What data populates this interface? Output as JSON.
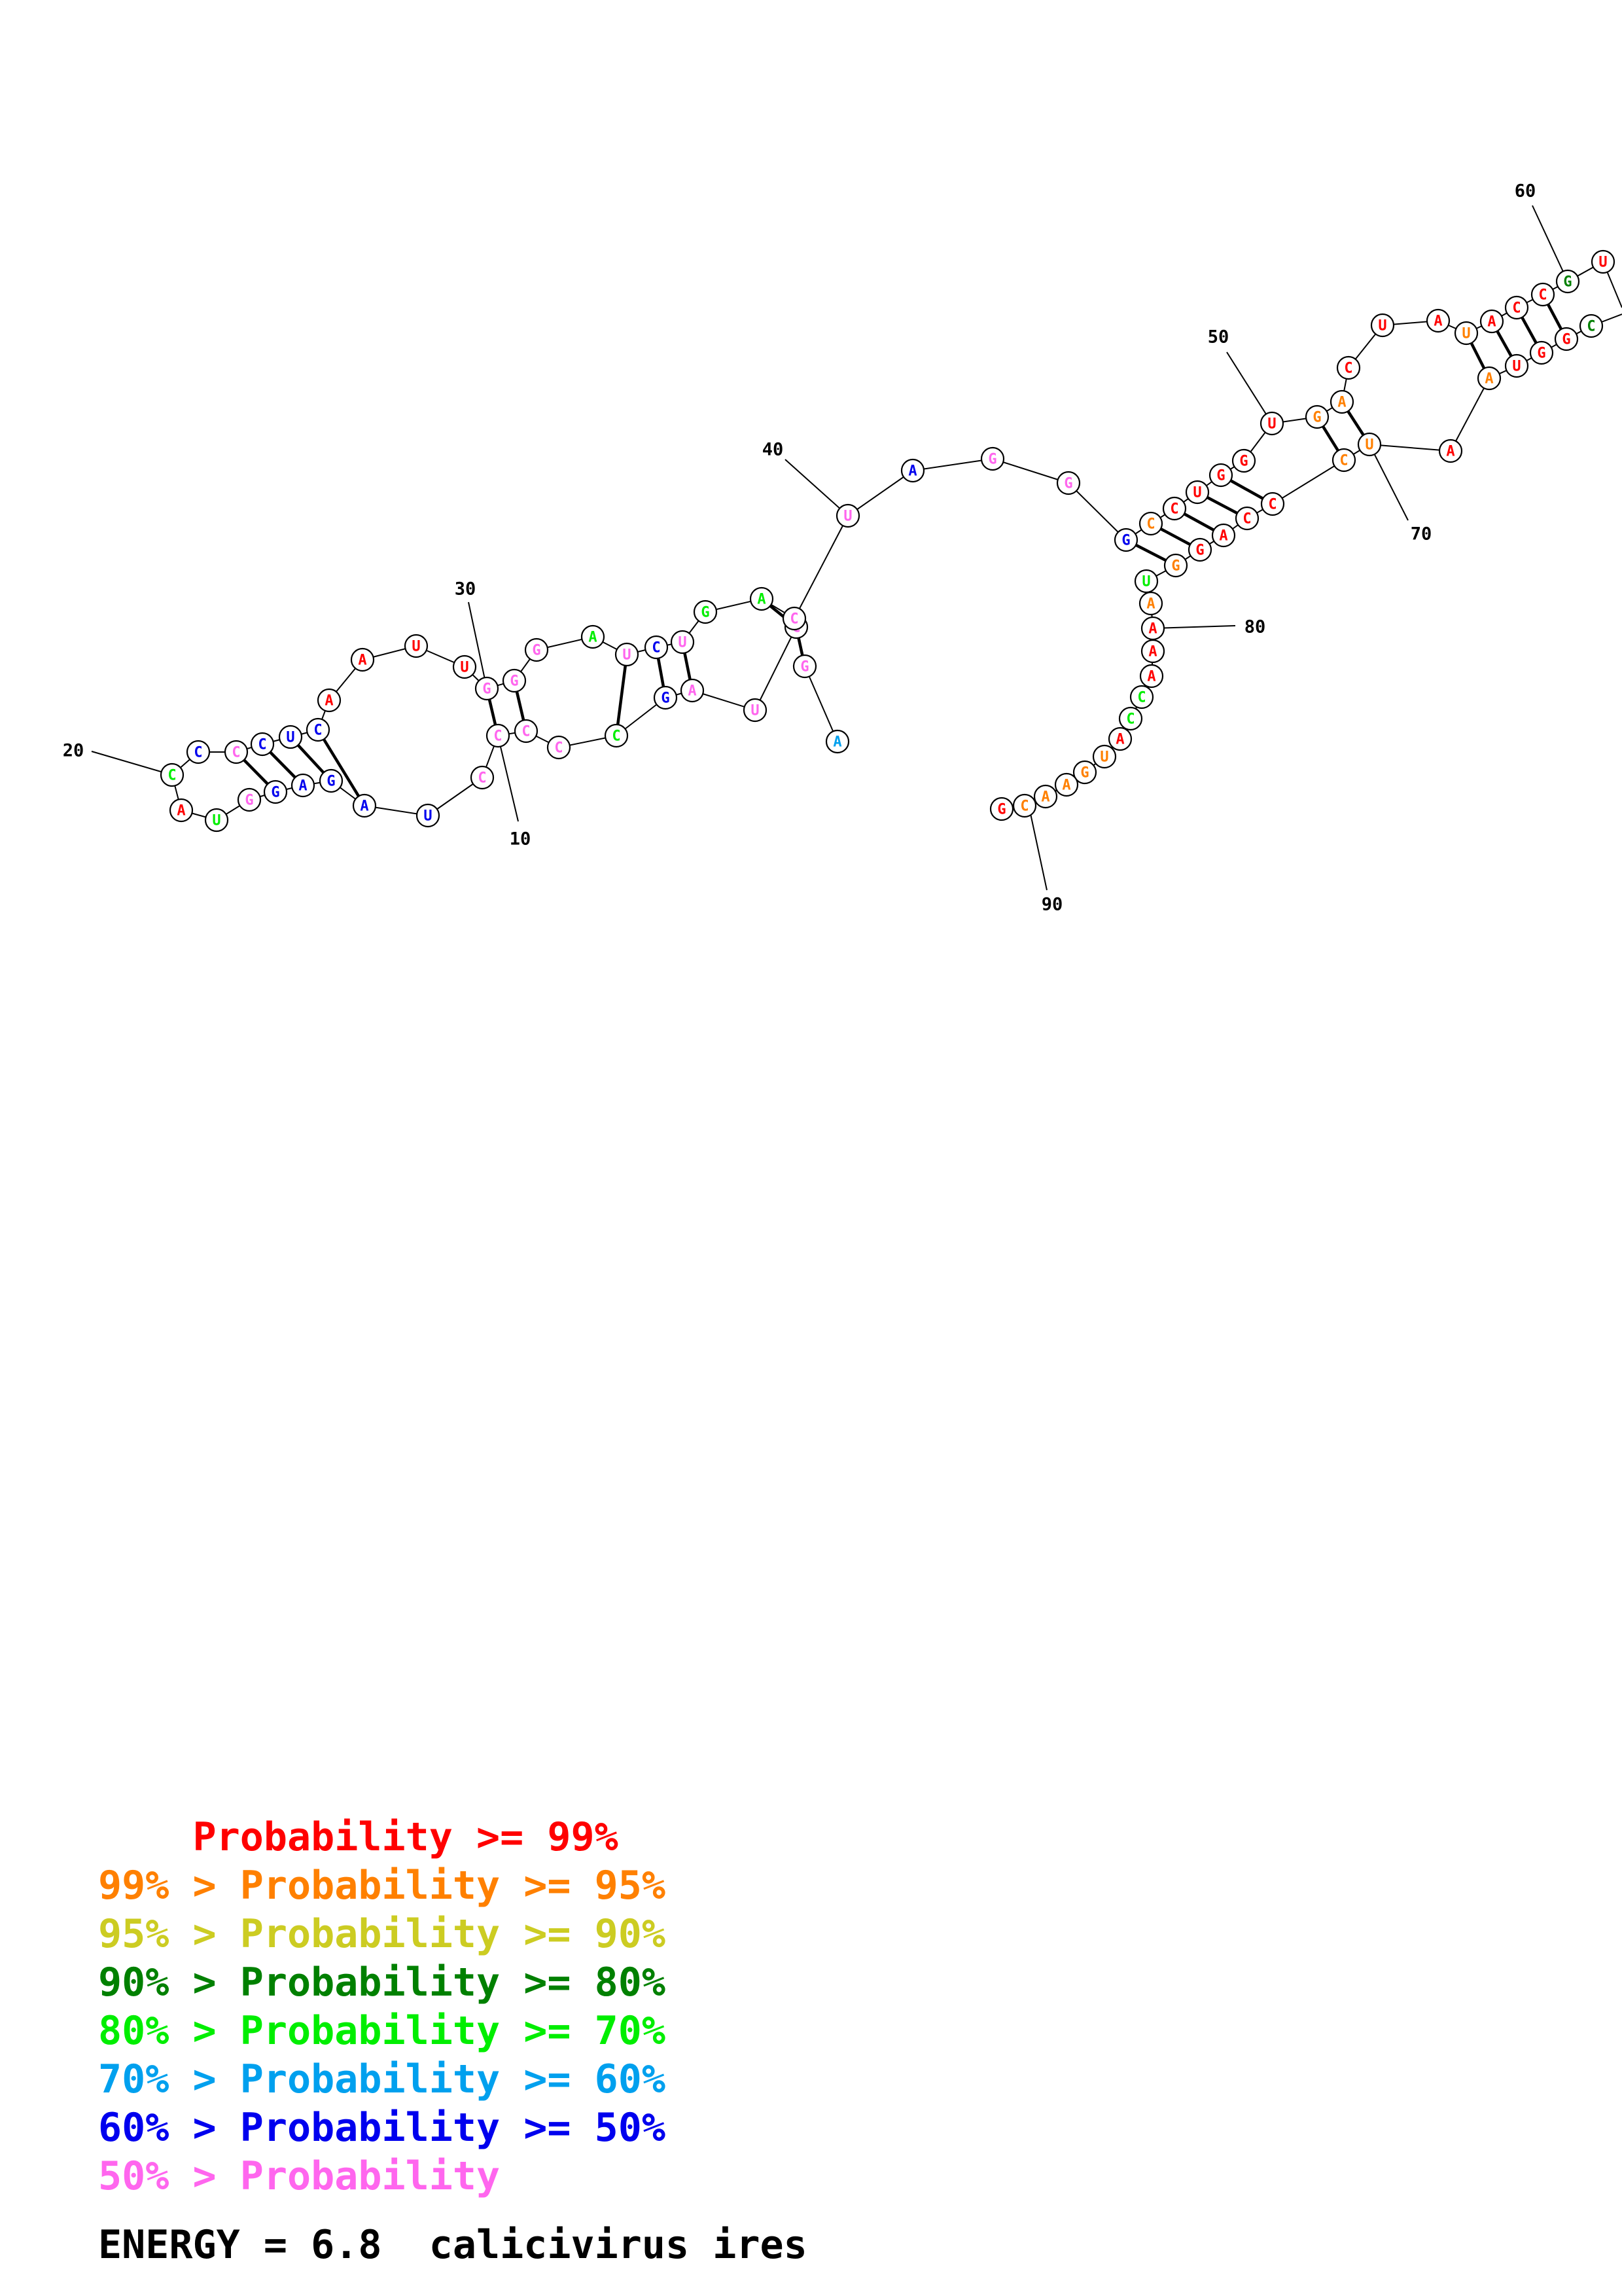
{
  "colors": {
    "red": "#ff0000",
    "orange": "#ff8000",
    "yellow": "#cccc22",
    "darkgreen": "#008000",
    "green": "#00ee00",
    "cyan": "#00a0ee",
    "blue": "#0000ee",
    "pink": "#ff66ee"
  },
  "nucleotides": [
    {
      "n": 1,
      "b": "A",
      "c": "cyan"
    },
    {
      "n": 2,
      "b": "G",
      "c": "pink"
    },
    {
      "n": 3,
      "b": "C",
      "c": "pink"
    },
    {
      "n": 4,
      "b": "U",
      "c": "pink"
    },
    {
      "n": 5,
      "b": "A",
      "c": "pink"
    },
    {
      "n": 6,
      "b": "G",
      "c": "blue"
    },
    {
      "n": 7,
      "b": "C",
      "c": "green"
    },
    {
      "n": 8,
      "b": "C",
      "c": "pink"
    },
    {
      "n": 9,
      "b": "C",
      "c": "pink"
    },
    {
      "n": 10,
      "b": "C",
      "c": "pink"
    },
    {
      "n": 11,
      "b": "C",
      "c": "pink"
    },
    {
      "n": 12,
      "b": "U",
      "c": "blue"
    },
    {
      "n": 13,
      "b": "A",
      "c": "blue"
    },
    {
      "n": 14,
      "b": "G",
      "c": "blue"
    },
    {
      "n": 15,
      "b": "A",
      "c": "blue"
    },
    {
      "n": 16,
      "b": "G",
      "c": "blue"
    },
    {
      "n": 17,
      "b": "G",
      "c": "pink"
    },
    {
      "n": 18,
      "b": "U",
      "c": "green"
    },
    {
      "n": 19,
      "b": "A",
      "c": "red"
    },
    {
      "n": 20,
      "b": "C",
      "c": "green"
    },
    {
      "n": 21,
      "b": "C",
      "c": "blue"
    },
    {
      "n": 22,
      "b": "C",
      "c": "pink"
    },
    {
      "n": 23,
      "b": "C",
      "c": "blue"
    },
    {
      "n": 24,
      "b": "U",
      "c": "blue"
    },
    {
      "n": 25,
      "b": "C",
      "c": "blue"
    },
    {
      "n": 26,
      "b": "A",
      "c": "red"
    },
    {
      "n": 27,
      "b": "A",
      "c": "red"
    },
    {
      "n": 28,
      "b": "U",
      "c": "red"
    },
    {
      "n": 29,
      "b": "U",
      "c": "red"
    },
    {
      "n": 30,
      "b": "G",
      "c": "pink"
    },
    {
      "n": 31,
      "b": "G",
      "c": "pink"
    },
    {
      "n": 32,
      "b": "G",
      "c": "pink"
    },
    {
      "n": 33,
      "b": "A",
      "c": "green"
    },
    {
      "n": 34,
      "b": "U",
      "c": "pink"
    },
    {
      "n": 35,
      "b": "C",
      "c": "blue"
    },
    {
      "n": 36,
      "b": "U",
      "c": "pink"
    },
    {
      "n": 37,
      "b": "G",
      "c": "green"
    },
    {
      "n": 38,
      "b": "A",
      "c": "green"
    },
    {
      "n": 39,
      "b": "C",
      "c": "pink"
    },
    {
      "n": 40,
      "b": "U",
      "c": "pink"
    },
    {
      "n": 41,
      "b": "A",
      "c": "blue"
    },
    {
      "n": 42,
      "b": "G",
      "c": "pink"
    },
    {
      "n": 43,
      "b": "G",
      "c": "pink"
    },
    {
      "n": 44,
      "b": "G",
      "c": "blue"
    },
    {
      "n": 45,
      "b": "C",
      "c": "orange"
    },
    {
      "n": 46,
      "b": "C",
      "c": "red"
    },
    {
      "n": 47,
      "b": "U",
      "c": "red"
    },
    {
      "n": 48,
      "b": "G",
      "c": "red"
    },
    {
      "n": 49,
      "b": "G",
      "c": "red"
    },
    {
      "n": 50,
      "b": "U",
      "c": "red"
    },
    {
      "n": 51,
      "b": "G",
      "c": "orange"
    },
    {
      "n": 52,
      "b": "A",
      "c": "orange"
    },
    {
      "n": 53,
      "b": "C",
      "c": "red"
    },
    {
      "n": 54,
      "b": "U",
      "c": "red"
    },
    {
      "n": 55,
      "b": "A",
      "c": "red"
    },
    {
      "n": 56,
      "b": "U",
      "c": "orange"
    },
    {
      "n": 57,
      "b": "A",
      "c": "red"
    },
    {
      "n": 58,
      "b": "C",
      "c": "red"
    },
    {
      "n": 59,
      "b": "C",
      "c": "red"
    },
    {
      "n": 60,
      "b": "G",
      "c": "darkgreen"
    },
    {
      "n": 61,
      "b": "U",
      "c": "red"
    },
    {
      "n": 62,
      "b": "C",
      "c": "darkgreen"
    },
    {
      "n": 63,
      "b": "G",
      "c": "red"
    },
    {
      "n": 64,
      "b": "G",
      "c": "red"
    },
    {
      "n": 65,
      "b": "U",
      "c": "red"
    },
    {
      "n": 66,
      "b": "A",
      "c": "orange"
    },
    {
      "n": 67,
      "b": "A",
      "c": "red"
    },
    {
      "n": 68,
      "b": "U",
      "c": "orange"
    },
    {
      "n": 69,
      "b": "C",
      "c": "orange"
    },
    {
      "n": 70,
      "b": "C",
      "c": "red"
    },
    {
      "n": 71,
      "b": "C",
      "c": "red"
    },
    {
      "n": 72,
      "b": "A",
      "c": "red"
    },
    {
      "n": 73,
      "b": "G",
      "c": "red"
    },
    {
      "n": 74,
      "b": "G",
      "c": "orange"
    },
    {
      "n": 75,
      "b": "U",
      "c": "green"
    },
    {
      "n": 76,
      "b": "A",
      "c": "orange"
    },
    {
      "n": 77,
      "b": "A",
      "c": "red"
    },
    {
      "n": 78,
      "b": "A",
      "c": "red"
    },
    {
      "n": 79,
      "b": "A",
      "c": "red"
    },
    {
      "n": 80,
      "b": "C",
      "c": "green"
    },
    {
      "n": 81,
      "b": "C",
      "c": "green"
    },
    {
      "n": 82,
      "b": "A",
      "c": "red"
    },
    {
      "n": 83,
      "b": "U",
      "c": "orange"
    },
    {
      "n": 84,
      "b": "G",
      "c": "orange"
    },
    {
      "n": 85,
      "b": "A",
      "c": "orange"
    },
    {
      "n": 86,
      "b": "A",
      "c": "orange"
    },
    {
      "n": 87,
      "b": "C",
      "c": "orange"
    },
    {
      "n": 88,
      "b": "G",
      "c": "red"
    }
  ],
  "pairs": [
    [
      2,
      39
    ],
    [
      3,
      38
    ],
    [
      5,
      36
    ],
    [
      6,
      35
    ],
    [
      7,
      34
    ],
    [
      9,
      31
    ],
    [
      10,
      30
    ],
    [
      13,
      25
    ],
    [
      14,
      24
    ],
    [
      15,
      23
    ],
    [
      16,
      22
    ],
    [
      44,
      74
    ],
    [
      45,
      73
    ],
    [
      46,
      72
    ],
    [
      47,
      71
    ],
    [
      48,
      70
    ],
    [
      51,
      69
    ],
    [
      52,
      68
    ],
    [
      56,
      66
    ],
    [
      57,
      65
    ],
    [
      58,
      64
    ],
    [
      59,
      63
    ]
  ],
  "ticks": [
    {
      "n": 10,
      "label": "10"
    },
    {
      "n": 20,
      "label": "20"
    },
    {
      "n": 30,
      "label": "30"
    },
    {
      "n": 40,
      "label": "40"
    },
    {
      "n": 50,
      "label": "50"
    },
    {
      "n": 60,
      "label": "60"
    },
    {
      "n": 70,
      "label": "70"
    },
    {
      "n": 80,
      "label": "80"
    },
    {
      "n": 90,
      "label": "90"
    }
  ],
  "legend": [
    {
      "prefix": "    ",
      "rest": "Probability >= 99%",
      "c": "red"
    },
    {
      "prefix": "99% > ",
      "rest": "Probability >= 95%",
      "c": "orange"
    },
    {
      "prefix": "95% > ",
      "rest": "Probability >= 90%",
      "c": "yellow"
    },
    {
      "prefix": "90% > ",
      "rest": "Probability >= 80%",
      "c": "darkgreen"
    },
    {
      "prefix": "80% > ",
      "rest": "Probability >= 70%",
      "c": "green"
    },
    {
      "prefix": "70% > ",
      "rest": "Probability >= 60%",
      "c": "cyan"
    },
    {
      "prefix": "60% > ",
      "rest": "Probability >= 50%",
      "c": "blue"
    },
    {
      "prefix": "50% > ",
      "rest": "Probability",
      "c": "pink"
    }
  ],
  "footer": {
    "energy": "ENERGY = 6.8",
    "name": "calicivirus ires"
  }
}
